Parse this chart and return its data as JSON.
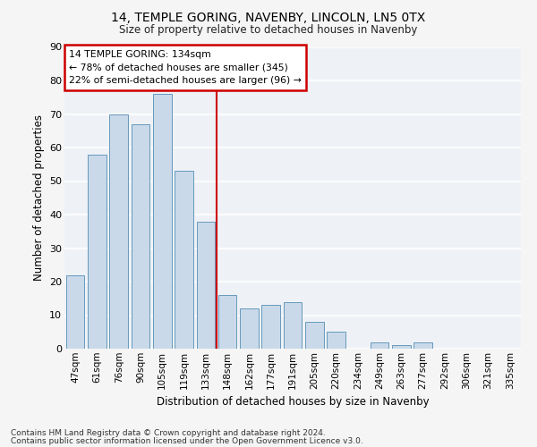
{
  "title1": "14, TEMPLE GORING, NAVENBY, LINCOLN, LN5 0TX",
  "title2": "Size of property relative to detached houses in Navenby",
  "xlabel": "Distribution of detached houses by size in Navenby",
  "ylabel": "Number of detached properties",
  "categories": [
    "47sqm",
    "61sqm",
    "76sqm",
    "90sqm",
    "105sqm",
    "119sqm",
    "133sqm",
    "148sqm",
    "162sqm",
    "177sqm",
    "191sqm",
    "205sqm",
    "220sqm",
    "234sqm",
    "249sqm",
    "263sqm",
    "277sqm",
    "292sqm",
    "306sqm",
    "321sqm",
    "335sqm"
  ],
  "values": [
    22,
    58,
    70,
    67,
    76,
    53,
    38,
    16,
    12,
    13,
    14,
    8,
    5,
    0,
    2,
    1,
    2,
    0,
    0,
    0,
    0
  ],
  "bar_color": "#c9d9ea",
  "bar_edge_color": "#6699bb",
  "bg_color": "#eef2f7",
  "grid_color": "#ffffff",
  "vline_x_idx": 6,
  "vline_color": "#cc0000",
  "annotation_title": "14 TEMPLE GORING: 134sqm",
  "annotation_line1": "← 78% of detached houses are smaller (345)",
  "annotation_line2": "22% of semi-detached houses are larger (96) →",
  "annotation_box_color": "#ffffff",
  "annotation_box_edge": "#cc0000",
  "ylim": [
    0,
    90
  ],
  "yticks": [
    0,
    10,
    20,
    30,
    40,
    50,
    60,
    70,
    80,
    90
  ],
  "footnote1": "Contains HM Land Registry data © Crown copyright and database right 2024.",
  "footnote2": "Contains public sector information licensed under the Open Government Licence v3.0."
}
